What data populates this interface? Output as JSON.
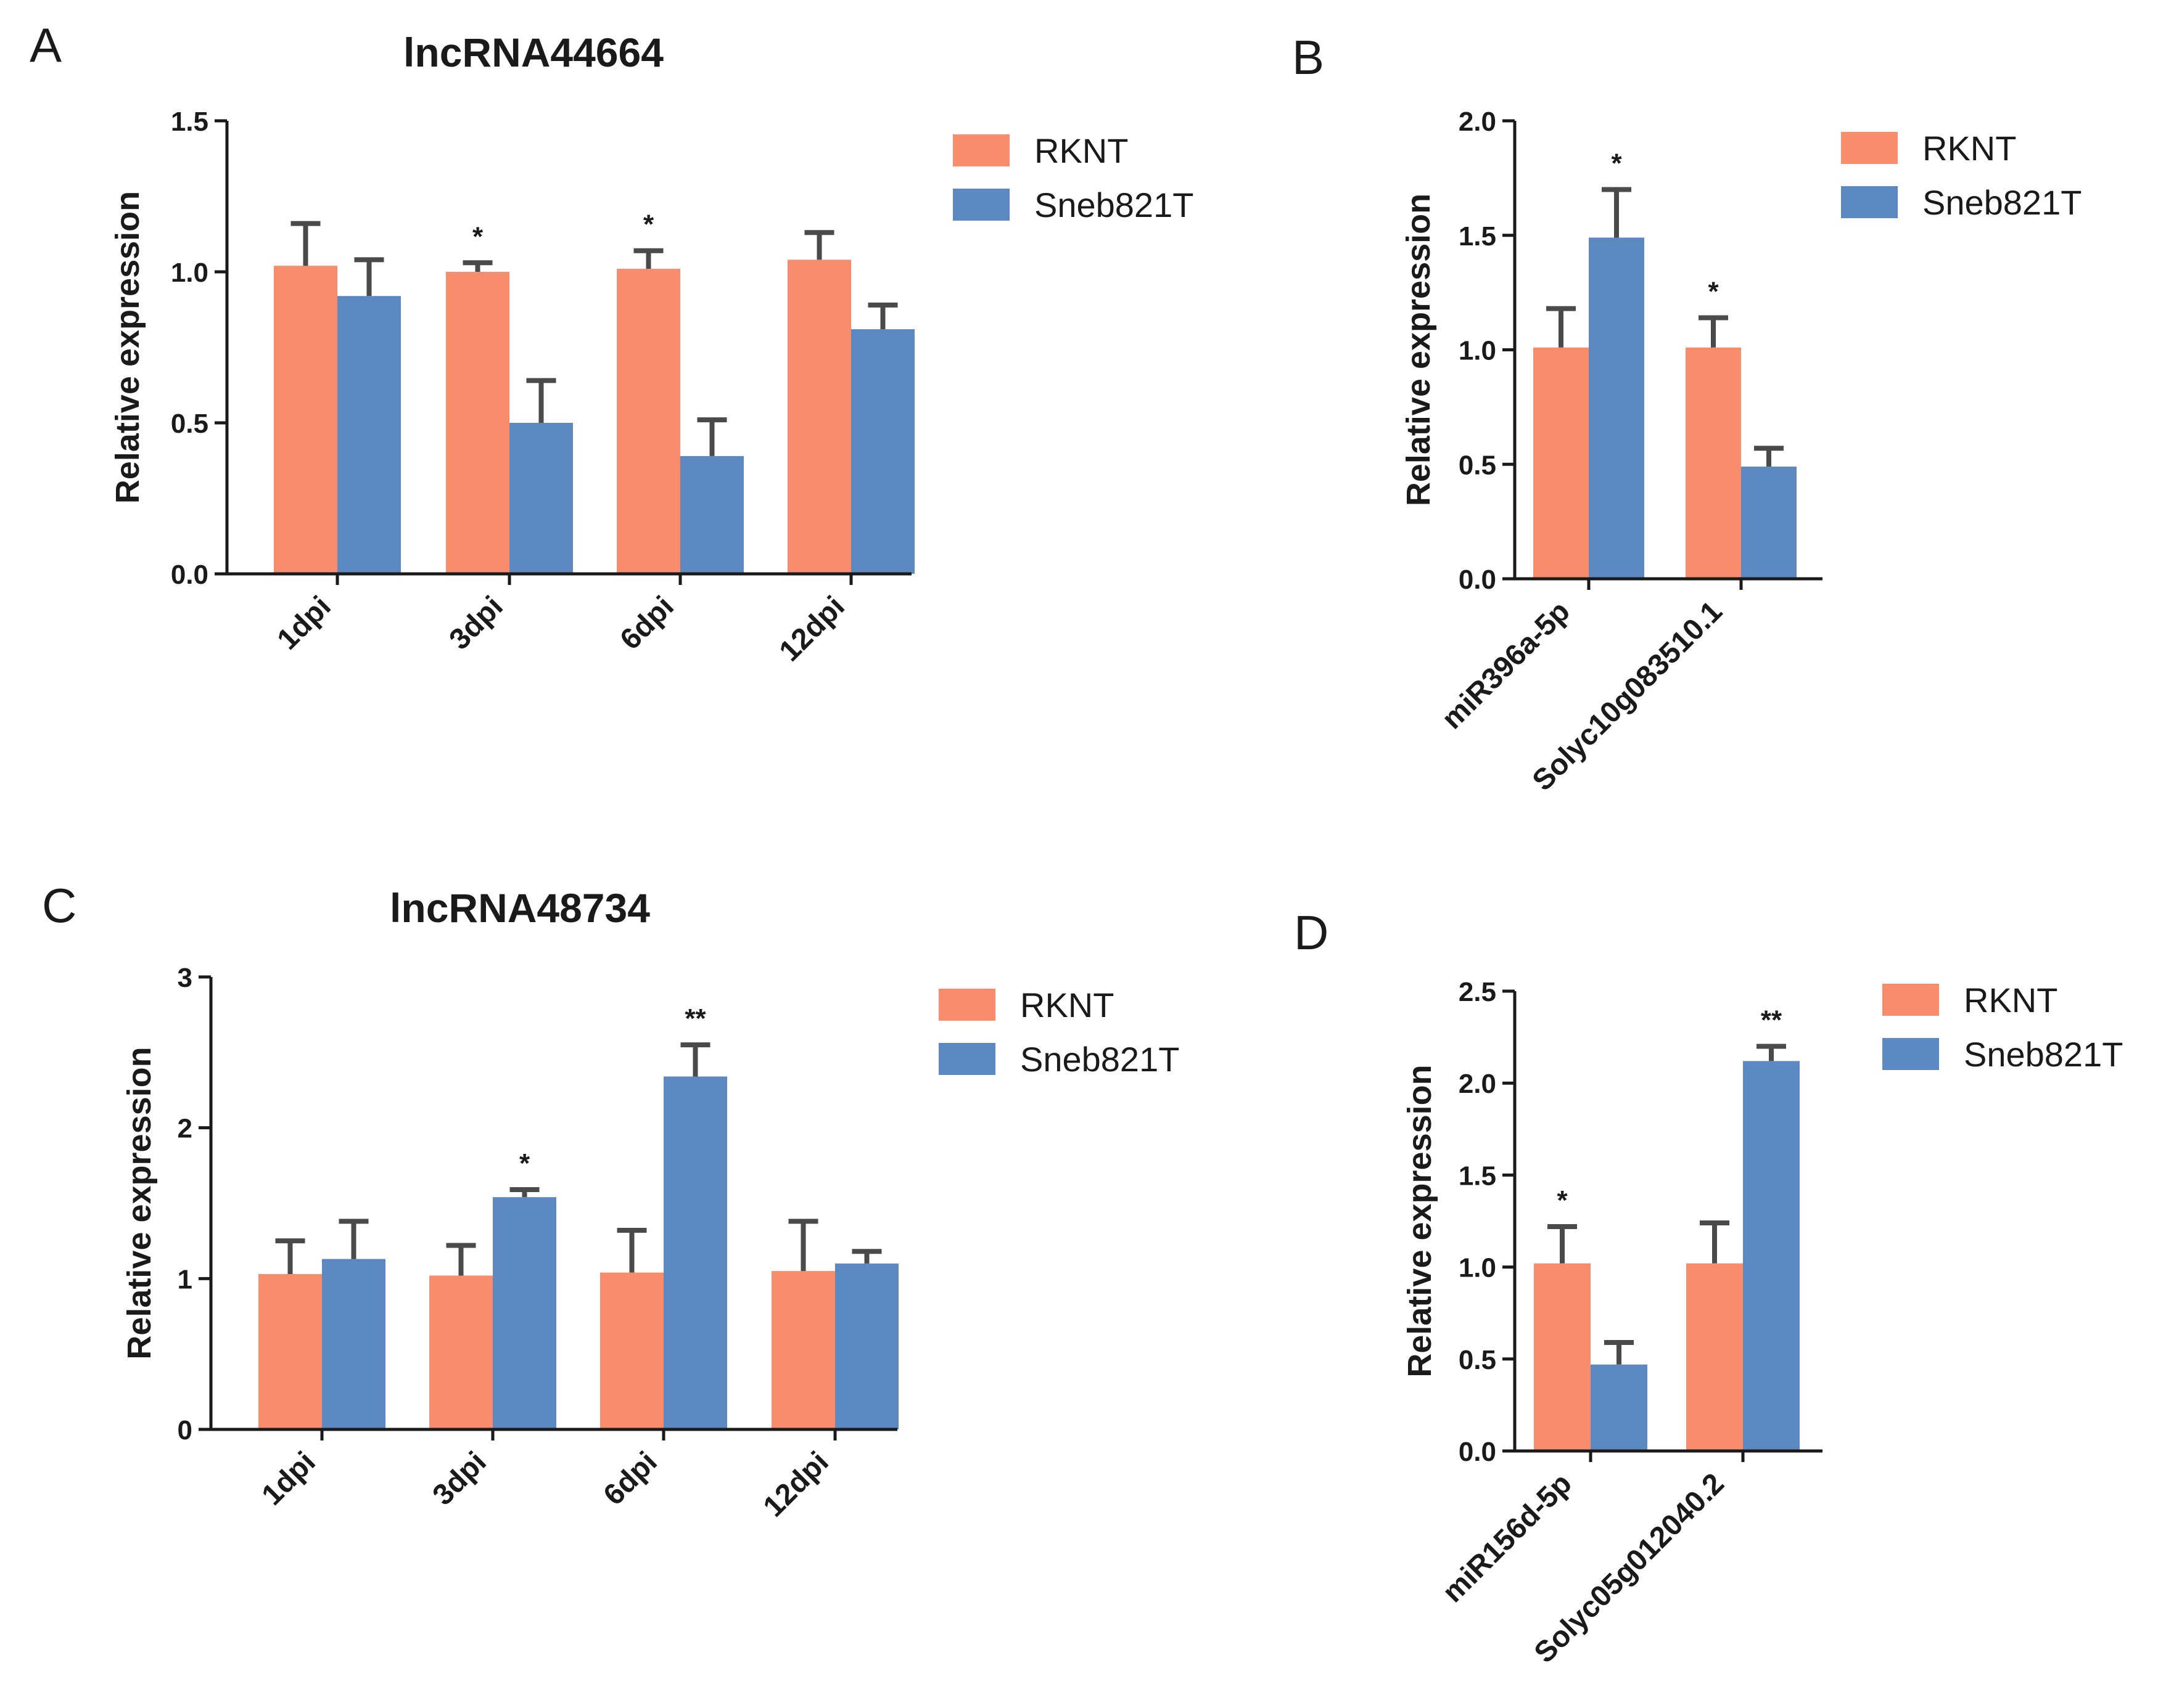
{
  "figure": {
    "panels": [
      "A",
      "B",
      "C",
      "D"
    ]
  },
  "legend": {
    "series": [
      {
        "name": "RKNT",
        "color": "#FA8C6E"
      },
      {
        "name": "Sneb821T",
        "color": "#5D89C2"
      }
    ]
  },
  "chart_data": [
    {
      "panel": "A",
      "type": "bar",
      "title": "lncRNA44664",
      "xlabel": "",
      "ylabel": "Relative expression",
      "ylim": [
        0,
        1.5
      ],
      "yticks": [
        "0.0",
        "0.5",
        "1.0",
        "1.5"
      ],
      "ytick_values": [
        0,
        0.5,
        1.0,
        1.5
      ],
      "categories": [
        "1dpi",
        "3dpi",
        "6dpi",
        "12dpi"
      ],
      "series": [
        {
          "name": "RKNT",
          "values": [
            1.02,
            1.0,
            1.01,
            1.04
          ],
          "errors": [
            0.14,
            0.03,
            0.06,
            0.09
          ]
        },
        {
          "name": "Sneb821T",
          "values": [
            0.92,
            0.5,
            0.39,
            0.81
          ],
          "errors": [
            0.12,
            0.14,
            0.12,
            0.08
          ]
        }
      ],
      "significance": [
        "",
        "*",
        "*",
        ""
      ]
    },
    {
      "panel": "B",
      "type": "bar",
      "title": "",
      "xlabel": "",
      "ylabel": "Relative expression",
      "ylim": [
        0,
        2.0
      ],
      "yticks": [
        "0.0",
        "0.5",
        "1.0",
        "1.5",
        "2.0"
      ],
      "ytick_values": [
        0,
        0.5,
        1.0,
        1.5,
        2.0
      ],
      "categories": [
        "miR396a-5p",
        "Solyc10g083510.1"
      ],
      "series": [
        {
          "name": "RKNT",
          "values": [
            1.01,
            1.01
          ],
          "errors": [
            0.17,
            0.13
          ]
        },
        {
          "name": "Sneb821T",
          "values": [
            1.49,
            0.49
          ],
          "errors": [
            0.21,
            0.08
          ]
        }
      ],
      "significance": [
        "*",
        "*"
      ]
    },
    {
      "panel": "C",
      "type": "bar",
      "title": "lncRNA48734",
      "xlabel": "",
      "ylabel": "Relative expression",
      "ylim": [
        0,
        3
      ],
      "yticks": [
        "0",
        "1",
        "2",
        "3"
      ],
      "ytick_values": [
        0,
        1,
        2,
        3
      ],
      "categories": [
        "1dpi",
        "3dpi",
        "6dpi",
        "12dpi"
      ],
      "series": [
        {
          "name": "RKNT",
          "values": [
            1.03,
            1.02,
            1.04,
            1.05
          ],
          "errors": [
            0.22,
            0.2,
            0.28,
            0.33
          ]
        },
        {
          "name": "Sneb821T",
          "values": [
            1.13,
            1.54,
            2.34,
            1.1
          ],
          "errors": [
            0.25,
            0.05,
            0.21,
            0.08
          ]
        }
      ],
      "significance": [
        "",
        "*",
        "**",
        ""
      ]
    },
    {
      "panel": "D",
      "type": "bar",
      "title": "",
      "xlabel": "",
      "ylabel": "Relative expression",
      "ylim": [
        0,
        2.5
      ],
      "yticks": [
        "0.0",
        "0.5",
        "1.0",
        "1.5",
        "2.0",
        "2.5"
      ],
      "ytick_values": [
        0,
        0.5,
        1.0,
        1.5,
        2.0,
        2.5
      ],
      "categories": [
        "miR156d-5p",
        "Solyc05g012040.2"
      ],
      "series": [
        {
          "name": "RKNT",
          "values": [
            1.02,
            1.02
          ],
          "errors": [
            0.2,
            0.22
          ]
        },
        {
          "name": "Sneb821T",
          "values": [
            0.47,
            2.12
          ],
          "errors": [
            0.12,
            0.08
          ]
        }
      ],
      "significance": [
        "*",
        "**"
      ]
    }
  ]
}
